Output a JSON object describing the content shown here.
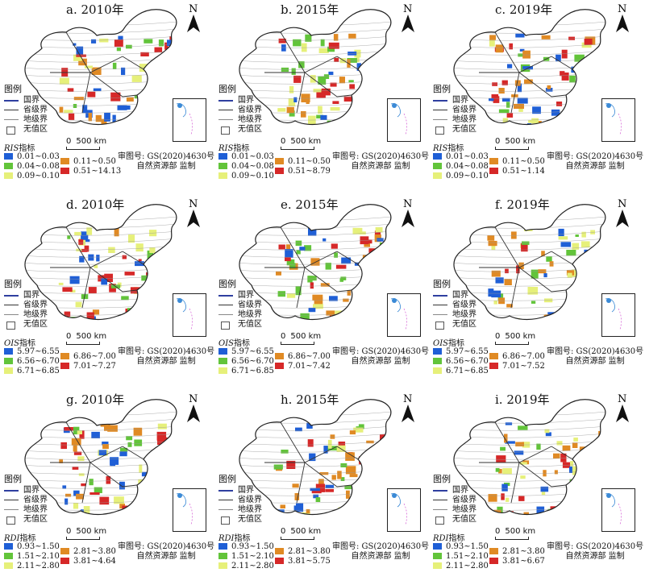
{
  "legend": {
    "title": "图例",
    "items": [
      {
        "label": "国界",
        "kind": "national"
      },
      {
        "label": "省级界",
        "kind": "provincial"
      },
      {
        "label": "地级界",
        "kind": "prefecture"
      },
      {
        "label": "无值区",
        "kind": "novalue"
      }
    ]
  },
  "scale_label": "500 km",
  "approval": {
    "line1": "审图号: GS(2020)4630号",
    "line2": "自然资源部 监制"
  },
  "colors": {
    "c1": "#1f5fd6",
    "c2": "#62c43a",
    "c3": "#e6f07a",
    "c4": "#e08a24",
    "c5": "#d62828"
  },
  "indices": [
    {
      "name": "RIS",
      "suffix": "指标",
      "panels": [
        {
          "title": "a. 2010年",
          "classes": [
            "0.01~0.03",
            "0.04~0.08",
            "0.09~0.10",
            "0.11~0.50",
            "0.51~14.13"
          ]
        },
        {
          "title": "b. 2015年",
          "classes": [
            "0.01~0.03",
            "0.04~0.08",
            "0.09~0.10",
            "0.11~0.50",
            "0.51~8.79"
          ]
        },
        {
          "title": "c. 2019年",
          "classes": [
            "0.01~0.03",
            "0.04~0.08",
            "0.09~0.10",
            "0.11~0.50",
            "0.51~1.14"
          ]
        }
      ]
    },
    {
      "name": "OIS",
      "suffix": "指标",
      "panels": [
        {
          "title": "d. 2010年",
          "classes": [
            "5.97~6.55",
            "6.56~6.70",
            "6.71~6.85",
            "6.86~7.00",
            "7.01~7.27"
          ]
        },
        {
          "title": "e. 2015年",
          "classes": [
            "5.97~6.55",
            "6.56~6.70",
            "6.71~6.85",
            "6.86~7.00",
            "7.01~7.42"
          ]
        },
        {
          "title": "f. 2019年",
          "classes": [
            "5.97~6.55",
            "6.56~6.70",
            "6.71~6.85",
            "6.86~7.00",
            "7.01~7.52"
          ]
        }
      ]
    },
    {
      "name": "RDI",
      "suffix": "指标",
      "panels": [
        {
          "title": "g. 2010年",
          "classes": [
            "0.93~1.50",
            "1.51~2.10",
            "2.11~2.80",
            "2.81~3.80",
            "3.81~4.64"
          ]
        },
        {
          "title": "h. 2015年",
          "classes": [
            "0.93~1.50",
            "1.51~2.10",
            "2.11~2.80",
            "2.81~3.80",
            "3.81~5.75"
          ]
        },
        {
          "title": "i. 2019年",
          "classes": [
            "0.93~1.50",
            "1.51~2.10",
            "2.11~2.80",
            "2.81~3.80",
            "3.81~6.67"
          ]
        }
      ]
    }
  ]
}
